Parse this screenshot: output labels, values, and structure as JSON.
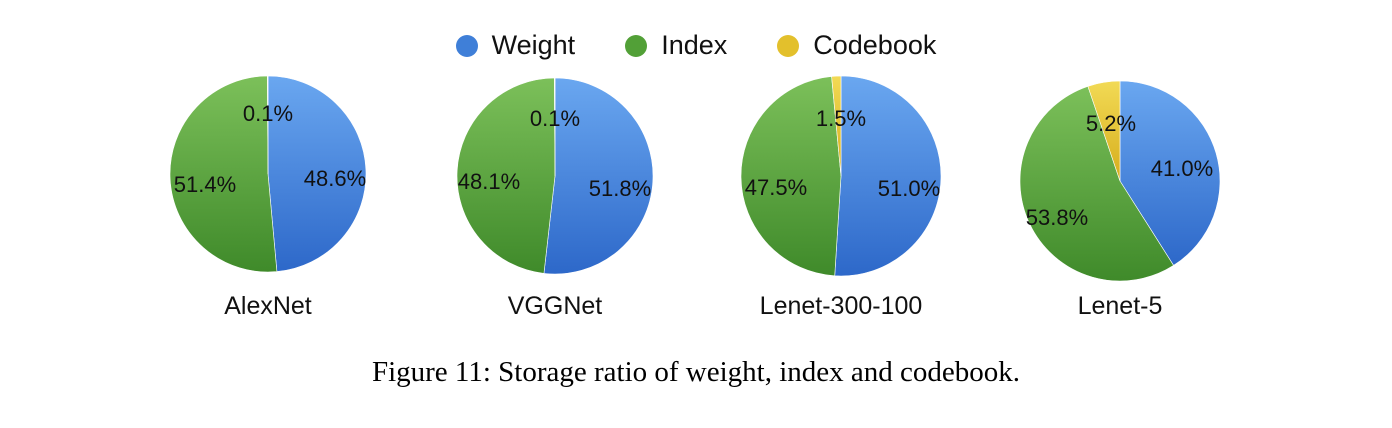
{
  "legend": [
    {
      "label": "Weight",
      "color": "#3f7fd8"
    },
    {
      "label": "Index",
      "color": "#52a037"
    },
    {
      "label": "Codebook",
      "color": "#e3c02c"
    }
  ],
  "caption": "Figure 11: Storage ratio of weight, index and codebook.",
  "chart_data": [
    {
      "type": "pie",
      "name": "AlexNet",
      "slices": [
        {
          "label": "Weight",
          "value": 48.6,
          "text": "48.6%"
        },
        {
          "label": "Index",
          "value": 51.4,
          "text": "51.4%"
        },
        {
          "label": "Codebook",
          "value": 0.1,
          "text": "0.1%"
        }
      ]
    },
    {
      "type": "pie",
      "name": "VGGNet",
      "slices": [
        {
          "label": "Weight",
          "value": 51.8,
          "text": "51.8%"
        },
        {
          "label": "Index",
          "value": 48.1,
          "text": "48.1%"
        },
        {
          "label": "Codebook",
          "value": 0.1,
          "text": "0.1%"
        }
      ]
    },
    {
      "type": "pie",
      "name": "Lenet-300-100",
      "slices": [
        {
          "label": "Weight",
          "value": 51.0,
          "text": "51.0%"
        },
        {
          "label": "Index",
          "value": 47.5,
          "text": "47.5%"
        },
        {
          "label": "Codebook",
          "value": 1.5,
          "text": "1.5%"
        }
      ]
    },
    {
      "type": "pie",
      "name": "Lenet-5",
      "slices": [
        {
          "label": "Weight",
          "value": 41.0,
          "text": "41.0%"
        },
        {
          "label": "Index",
          "value": 53.8,
          "text": "53.8%"
        },
        {
          "label": "Codebook",
          "value": 5.2,
          "text": "5.2%"
        }
      ]
    }
  ]
}
